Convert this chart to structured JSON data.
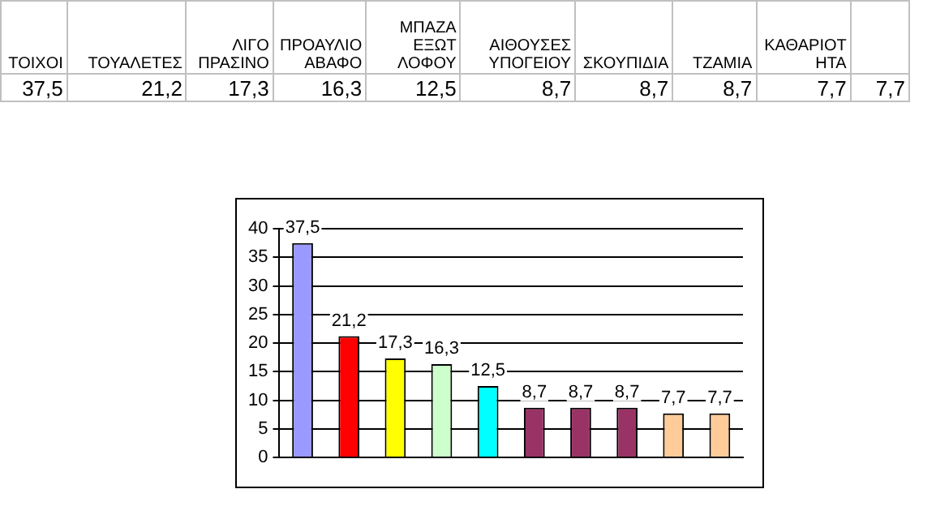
{
  "chart_data": {
    "type": "bar",
    "categories": [
      null,
      null,
      null,
      null,
      null,
      null,
      null,
      null,
      null,
      null
    ],
    "annotations": [
      "ΤΟΙΧΟΙ",
      "ΤΟΥΑΛΕΤΕΣ",
      "ΛΙΓΟ ΠΡΑΣΙΝΟ",
      "ΠΡΟΑΥΛΙΟ ΑΒΑΦΟ",
      "ΜΠΑΖΑ ΕΞΩΤ ΛΟΦΟΥ",
      "ΑΙΘΟΥΣΕΣ ΥΠΟΓΕΙΟΥ",
      "ΣΚΟΥΠΙΔΙΑ",
      "ΤΖΑΜΙΑ",
      "ΚΑΘΑΡΙΟΤΗΤΑ"
    ],
    "values": [
      37.5,
      21.2,
      17.3,
      16.3,
      12.5,
      8.7,
      8.7,
      8.7,
      7.7,
      7.7
    ],
    "value_labels": [
      "37,5",
      "21,2",
      "17,3",
      "16,3",
      "12,5",
      "8,7",
      "8,7",
      "8,7",
      "7,7",
      "7,7"
    ],
    "colors": [
      "#9999ff",
      "#ff0000",
      "#ffff00",
      "#ccffcc",
      "#00ffff",
      "#993366",
      "#993366",
      "#993366",
      "#ffcc99",
      "#ffcc99"
    ],
    "ylim": [
      0,
      40
    ],
    "yticks": [
      0,
      5,
      10,
      15,
      20,
      25,
      30,
      35,
      40
    ],
    "grid": "y",
    "legend": false,
    "tick_labels": "y"
  }
}
